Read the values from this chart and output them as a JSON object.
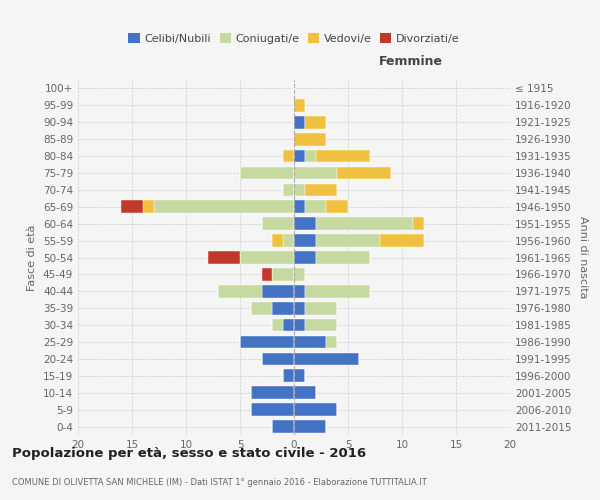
{
  "age_groups": [
    "0-4",
    "5-9",
    "10-14",
    "15-19",
    "20-24",
    "25-29",
    "30-34",
    "35-39",
    "40-44",
    "45-49",
    "50-54",
    "55-59",
    "60-64",
    "65-69",
    "70-74",
    "75-79",
    "80-84",
    "85-89",
    "90-94",
    "95-99",
    "100+"
  ],
  "birth_years": [
    "2011-2015",
    "2006-2010",
    "2001-2005",
    "1996-2000",
    "1991-1995",
    "1986-1990",
    "1981-1985",
    "1976-1980",
    "1971-1975",
    "1966-1970",
    "1961-1965",
    "1956-1960",
    "1951-1955",
    "1946-1950",
    "1941-1945",
    "1936-1940",
    "1931-1935",
    "1926-1930",
    "1921-1925",
    "1916-1920",
    "≤ 1915"
  ],
  "male": {
    "celibi": [
      2,
      4,
      4,
      1,
      3,
      5,
      1,
      2,
      3,
      0,
      0,
      0,
      0,
      0,
      0,
      0,
      0,
      0,
      0,
      0,
      0
    ],
    "coniugati": [
      0,
      0,
      0,
      0,
      0,
      0,
      1,
      2,
      4,
      2,
      5,
      1,
      3,
      13,
      1,
      5,
      0,
      0,
      0,
      0,
      0
    ],
    "vedovi": [
      0,
      0,
      0,
      0,
      0,
      0,
      0,
      0,
      0,
      0,
      0,
      1,
      0,
      1,
      0,
      0,
      1,
      0,
      0,
      0,
      0
    ],
    "divorziati": [
      0,
      0,
      0,
      0,
      0,
      0,
      0,
      0,
      0,
      1,
      3,
      0,
      0,
      2,
      0,
      0,
      0,
      0,
      0,
      0,
      0
    ]
  },
  "female": {
    "nubili": [
      3,
      4,
      2,
      1,
      6,
      3,
      1,
      1,
      1,
      0,
      2,
      2,
      2,
      1,
      0,
      0,
      1,
      0,
      1,
      0,
      0
    ],
    "coniugate": [
      0,
      0,
      0,
      0,
      0,
      1,
      3,
      3,
      6,
      1,
      5,
      6,
      9,
      2,
      1,
      4,
      1,
      0,
      0,
      0,
      0
    ],
    "vedove": [
      0,
      0,
      0,
      0,
      0,
      0,
      0,
      0,
      0,
      0,
      0,
      4,
      1,
      2,
      3,
      5,
      5,
      3,
      2,
      1,
      0
    ],
    "divorziate": [
      0,
      0,
      0,
      0,
      0,
      0,
      0,
      0,
      0,
      0,
      0,
      0,
      0,
      0,
      0,
      0,
      0,
      0,
      0,
      0,
      0
    ]
  },
  "colors": {
    "celibi_nubili": "#4472c4",
    "coniugati": "#c5d9a0",
    "vedovi": "#f0c040",
    "divorziati": "#c0392b"
  },
  "xlim": [
    -20,
    20
  ],
  "xticks": [
    -20,
    -15,
    -10,
    -5,
    0,
    5,
    10,
    15,
    20
  ],
  "xticklabels": [
    "20",
    "15",
    "10",
    "5",
    "0",
    "5",
    "10",
    "15",
    "20"
  ],
  "title": "Popolazione per età, sesso e stato civile - 2016",
  "subtitle": "COMUNE DI OLIVETTA SAN MICHELE (IM) - Dati ISTAT 1° gennaio 2016 - Elaborazione TUTTITALIA.IT",
  "ylabel_left": "Fasce di età",
  "ylabel_right": "Anni di nascita",
  "label_femmine": "Femmine",
  "legend_labels": [
    "Celibi/Nubili",
    "Coniugati/e",
    "Vedovi/e",
    "Divorziati/e"
  ],
  "bg_color": "#f5f5f5",
  "grid_color": "#cccccc"
}
